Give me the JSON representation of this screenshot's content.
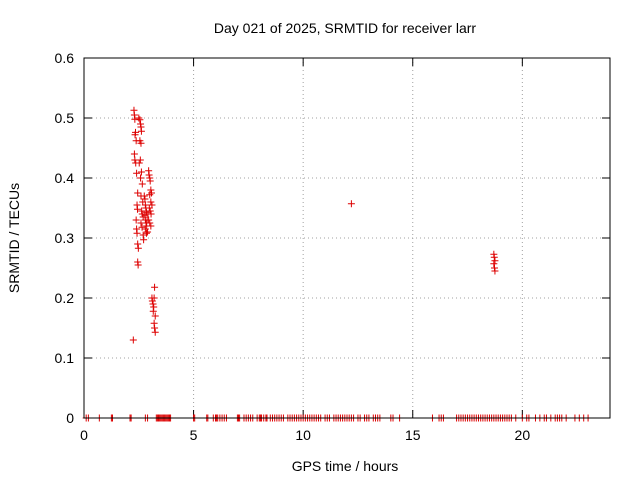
{
  "chart_data": {
    "type": "scatter",
    "title": "Day 021 of 2025, SRMTID for receiver larr",
    "xlabel": "GPS time / hours",
    "ylabel": "SRMTID / TECUs",
    "xlim": [
      0,
      24
    ],
    "ylim": [
      0,
      0.6
    ],
    "x_ticks": [
      0,
      5,
      10,
      15,
      20
    ],
    "x_tick_labels": [
      "0",
      "5",
      "10",
      "15",
      "20"
    ],
    "y_ticks": [
      0,
      0.1,
      0.2,
      0.3,
      0.4,
      0.5,
      0.6
    ],
    "y_tick_labels": [
      "0",
      "0.1",
      "0.2",
      "0.3",
      "0.4",
      "0.5",
      "0.6"
    ],
    "grid": true,
    "marker": "+",
    "series": [
      {
        "name": "SRMTID",
        "color": "#dd0000",
        "points": [
          [
            2.28,
            0.513
          ],
          [
            2.3,
            0.505
          ],
          [
            2.32,
            0.498
          ],
          [
            2.35,
            0.476
          ],
          [
            2.33,
            0.472
          ],
          [
            2.38,
            0.462
          ],
          [
            2.3,
            0.44
          ],
          [
            2.32,
            0.43
          ],
          [
            2.36,
            0.425
          ],
          [
            2.4,
            0.408
          ],
          [
            2.45,
            0.375
          ],
          [
            2.42,
            0.355
          ],
          [
            2.44,
            0.348
          ],
          [
            2.38,
            0.33
          ],
          [
            2.4,
            0.315
          ],
          [
            2.42,
            0.308
          ],
          [
            2.45,
            0.29
          ],
          [
            2.48,
            0.283
          ],
          [
            2.45,
            0.26
          ],
          [
            2.47,
            0.255
          ],
          [
            2.25,
            0.13
          ],
          [
            2.5,
            0.5
          ],
          [
            2.55,
            0.497
          ],
          [
            2.58,
            0.49
          ],
          [
            2.6,
            0.485
          ],
          [
            2.62,
            0.478
          ],
          [
            2.55,
            0.462
          ],
          [
            2.6,
            0.458
          ],
          [
            2.57,
            0.43
          ],
          [
            2.52,
            0.425
          ],
          [
            2.62,
            0.41
          ],
          [
            2.58,
            0.4
          ],
          [
            2.66,
            0.39
          ],
          [
            2.6,
            0.37
          ],
          [
            2.68,
            0.36
          ],
          [
            2.63,
            0.345
          ],
          [
            2.66,
            0.34
          ],
          [
            2.7,
            0.335
          ],
          [
            2.6,
            0.325
          ],
          [
            2.65,
            0.318
          ],
          [
            2.7,
            0.305
          ],
          [
            2.72,
            0.297
          ],
          [
            2.75,
            0.37
          ],
          [
            2.78,
            0.365
          ],
          [
            2.8,
            0.355
          ],
          [
            2.82,
            0.35
          ],
          [
            2.85,
            0.343
          ],
          [
            2.78,
            0.338
          ],
          [
            2.8,
            0.33
          ],
          [
            2.83,
            0.325
          ],
          [
            2.86,
            0.32
          ],
          [
            2.8,
            0.315
          ],
          [
            2.9,
            0.31
          ],
          [
            2.92,
            0.34
          ],
          [
            2.88,
            0.33
          ],
          [
            2.85,
            0.308
          ],
          [
            2.95,
            0.412
          ],
          [
            2.97,
            0.405
          ],
          [
            3.0,
            0.4
          ],
          [
            3.02,
            0.395
          ],
          [
            3.05,
            0.38
          ],
          [
            3.08,
            0.375
          ],
          [
            3.0,
            0.372
          ],
          [
            3.05,
            0.36
          ],
          [
            3.1,
            0.355
          ],
          [
            2.98,
            0.35
          ],
          [
            3.02,
            0.345
          ],
          [
            3.06,
            0.34
          ],
          [
            2.95,
            0.33
          ],
          [
            3.0,
            0.325
          ],
          [
            3.05,
            0.32
          ],
          [
            3.1,
            0.2
          ],
          [
            3.12,
            0.195
          ],
          [
            3.15,
            0.19
          ],
          [
            3.18,
            0.185
          ],
          [
            3.2,
            0.2
          ],
          [
            3.22,
            0.218
          ],
          [
            3.16,
            0.178
          ],
          [
            3.25,
            0.17
          ],
          [
            3.2,
            0.158
          ],
          [
            3.22,
            0.15
          ],
          [
            3.25,
            0.143
          ],
          [
            12.2,
            0.357
          ],
          [
            18.7,
            0.273
          ],
          [
            18.72,
            0.268
          ],
          [
            18.75,
            0.262
          ],
          [
            18.7,
            0.257
          ],
          [
            18.73,
            0.25
          ],
          [
            18.75,
            0.245
          ]
        ]
      }
    ],
    "zero_times": [
      0.1,
      0.2,
      0.7,
      1.25,
      1.3,
      2.1,
      2.15,
      2.8,
      2.9,
      3.3,
      3.35,
      3.4,
      3.45,
      3.5,
      3.55,
      3.6,
      3.65,
      3.7,
      3.75,
      3.8,
      3.85,
      3.9,
      3.95,
      5.0,
      5.05,
      5.6,
      5.65,
      5.9,
      6.0,
      6.05,
      6.1,
      6.2,
      6.3,
      6.4,
      6.5,
      7.0,
      7.05,
      7.1,
      7.3,
      7.4,
      7.5,
      7.6,
      7.7,
      7.9,
      8.0,
      8.05,
      8.1,
      8.2,
      8.3,
      8.35,
      8.5,
      8.6,
      8.7,
      8.8,
      8.9,
      9.0,
      9.1,
      9.3,
      9.4,
      9.5,
      9.6,
      9.7,
      9.8,
      9.9,
      10.0,
      10.1,
      10.2,
      10.3,
      10.4,
      10.5,
      10.6,
      10.7,
      10.8,
      11.0,
      11.1,
      11.2,
      11.4,
      11.5,
      11.6,
      11.7,
      11.8,
      11.9,
      12.0,
      12.1,
      12.2,
      12.3,
      12.5,
      12.6,
      12.8,
      12.9,
      13.0,
      13.2,
      13.3,
      13.4,
      13.5,
      14.0,
      14.1,
      14.4,
      15.9,
      16.2,
      16.3,
      16.4,
      17.0,
      17.1,
      17.2,
      17.3,
      17.4,
      17.5,
      17.6,
      17.7,
      17.8,
      17.9,
      18.0,
      18.1,
      18.2,
      18.3,
      18.4,
      18.5,
      18.6,
      18.7,
      18.8,
      18.9,
      19.0,
      19.1,
      19.2,
      19.3,
      19.4,
      19.5,
      19.7,
      20.0,
      20.2,
      20.3,
      20.6,
      20.8,
      21.0,
      21.1,
      21.3,
      21.5,
      21.6,
      21.7,
      21.8,
      22.0,
      22.4,
      22.6,
      22.8,
      23.0
    ]
  }
}
